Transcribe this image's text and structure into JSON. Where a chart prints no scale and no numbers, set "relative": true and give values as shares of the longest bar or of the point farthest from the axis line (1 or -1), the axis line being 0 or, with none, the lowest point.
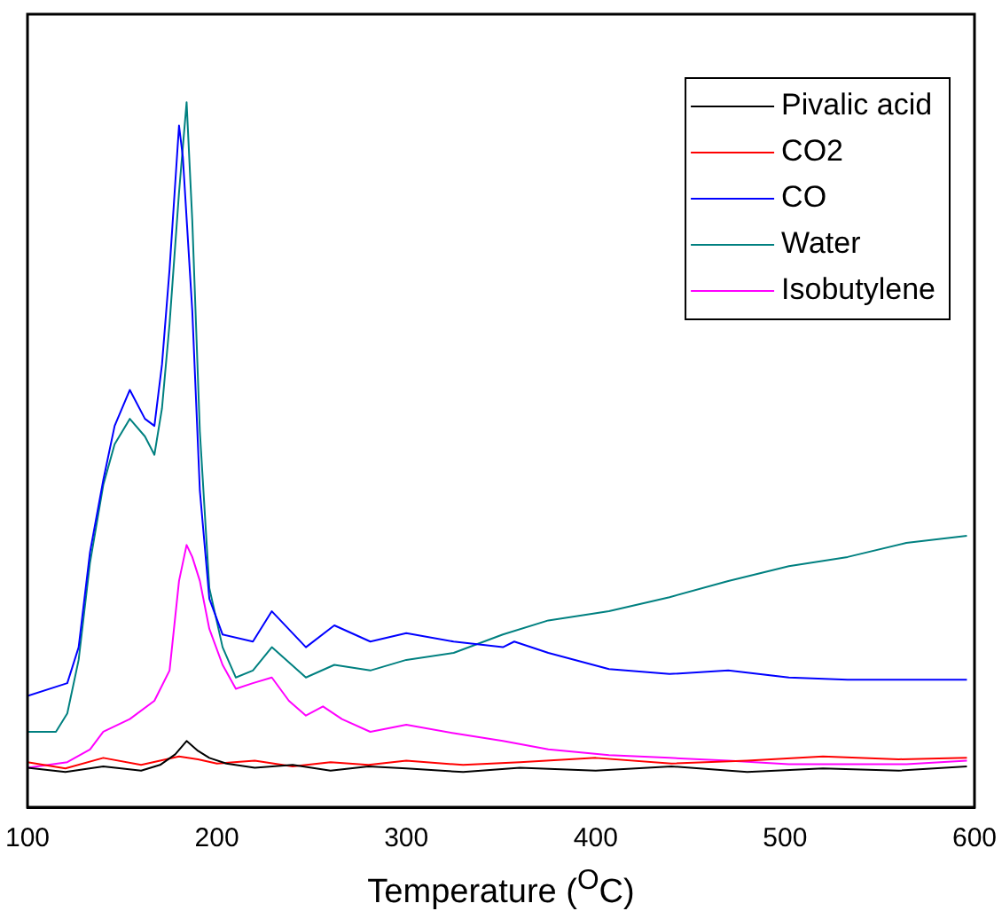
{
  "chart_data": {
    "type": "line",
    "xlabel": "Temperature ($^{O}$C)",
    "relative": true,
    "xlim": [
      100,
      600
    ],
    "xticks": [
      100,
      200,
      300,
      400,
      500,
      600
    ],
    "legend": "top right",
    "grid": false,
    "marker": "none",
    "line_style": "solid",
    "series": [
      {
        "name": "Pivalic acid",
        "color": "#000000",
        "x": [
          100,
          120,
          140,
          160,
          170,
          178,
          184,
          190,
          196,
          205,
          220,
          240,
          260,
          280,
          300,
          330,
          360,
          400,
          440,
          480,
          520,
          560,
          596
        ],
        "values": [
          0.056,
          0.05,
          0.058,
          0.052,
          0.06,
          0.075,
          0.094,
          0.08,
          0.07,
          0.062,
          0.056,
          0.06,
          0.052,
          0.058,
          0.055,
          0.05,
          0.056,
          0.052,
          0.058,
          0.05,
          0.055,
          0.052,
          0.058
        ]
      },
      {
        "name": "CO2",
        "color": "#ff0000",
        "x": [
          100,
          120,
          140,
          160,
          180,
          190,
          200,
          220,
          240,
          260,
          280,
          300,
          330,
          360,
          400,
          440,
          480,
          520,
          560,
          596
        ],
        "values": [
          0.064,
          0.055,
          0.07,
          0.06,
          0.072,
          0.068,
          0.062,
          0.066,
          0.058,
          0.064,
          0.06,
          0.066,
          0.06,
          0.064,
          0.07,
          0.062,
          0.066,
          0.072,
          0.068,
          0.07
        ]
      },
      {
        "name": "CO",
        "color": "#0000ff",
        "x": [
          100,
          121,
          127,
          133,
          140,
          146,
          154,
          162,
          167,
          171,
          175,
          180,
          182,
          187,
          191,
          196,
          203,
          219,
          229,
          247,
          262,
          281,
          300,
          325,
          351,
          357,
          375,
          407,
          439,
          470,
          502,
          533,
          564,
          596
        ],
        "values": [
          0.158,
          0.176,
          0.227,
          0.362,
          0.464,
          0.541,
          0.592,
          0.551,
          0.541,
          0.628,
          0.763,
          0.967,
          0.923,
          0.704,
          0.449,
          0.296,
          0.245,
          0.235,
          0.278,
          0.227,
          0.258,
          0.235,
          0.247,
          0.235,
          0.227,
          0.235,
          0.219,
          0.196,
          0.189,
          0.194,
          0.184,
          0.181,
          0.181,
          0.181
        ]
      },
      {
        "name": "Water",
        "color": "#008080",
        "x": [
          100,
          115,
          121,
          127,
          133,
          140,
          146,
          154,
          162,
          167,
          171,
          175,
          180,
          184,
          187,
          191,
          196,
          203,
          210,
          219,
          229,
          247,
          262,
          281,
          300,
          325,
          351,
          375,
          407,
          439,
          470,
          502,
          533,
          564,
          596
        ],
        "values": [
          0.107,
          0.107,
          0.133,
          0.209,
          0.347,
          0.457,
          0.515,
          0.551,
          0.526,
          0.5,
          0.566,
          0.686,
          0.872,
          1.0,
          0.832,
          0.533,
          0.311,
          0.227,
          0.184,
          0.194,
          0.227,
          0.184,
          0.202,
          0.194,
          0.209,
          0.219,
          0.245,
          0.265,
          0.278,
          0.298,
          0.321,
          0.342,
          0.355,
          0.375,
          0.385
        ]
      },
      {
        "name": "Isobutylene",
        "color": "#ff00ff",
        "x": [
          100,
          121,
          133,
          140,
          154,
          167,
          175,
          180,
          184,
          187,
          191,
          196,
          203,
          210,
          219,
          229,
          238,
          247,
          256,
          266,
          281,
          300,
          325,
          351,
          375,
          407,
          439,
          470,
          502,
          533,
          564,
          596
        ],
        "values": [
          0.056,
          0.064,
          0.082,
          0.107,
          0.125,
          0.151,
          0.194,
          0.321,
          0.372,
          0.355,
          0.321,
          0.253,
          0.202,
          0.168,
          0.176,
          0.184,
          0.151,
          0.13,
          0.143,
          0.125,
          0.107,
          0.117,
          0.105,
          0.094,
          0.082,
          0.074,
          0.07,
          0.066,
          0.061,
          0.061,
          0.061,
          0.066
        ]
      }
    ]
  }
}
